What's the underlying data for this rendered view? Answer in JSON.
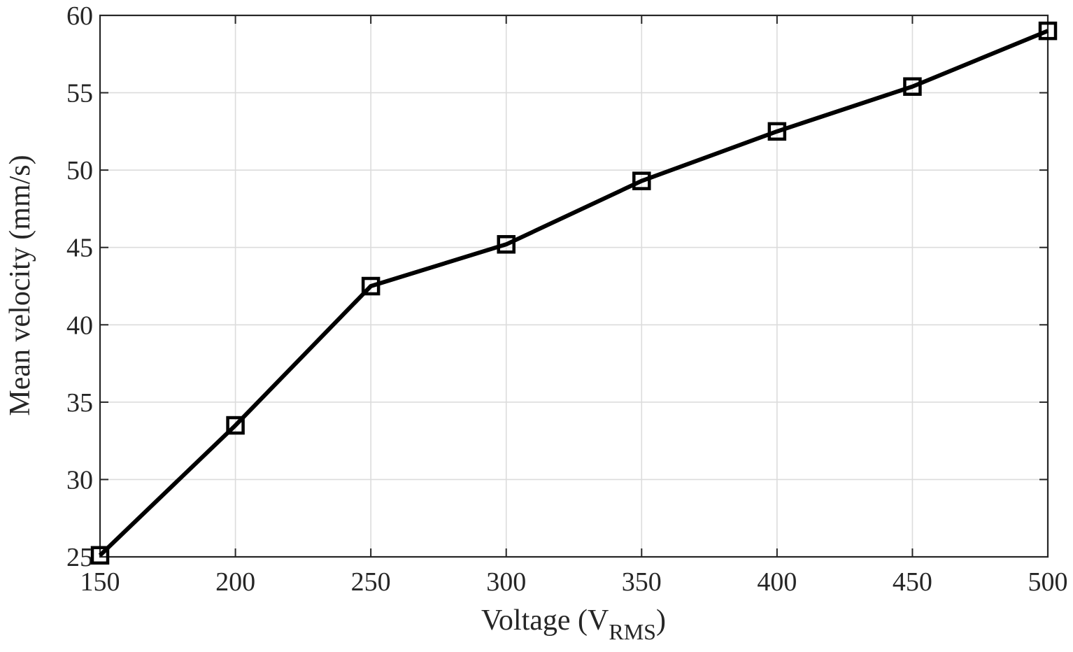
{
  "chart_data": {
    "type": "line",
    "xlabel": "Voltage (V",
    "xlabel_subscript": "RMS",
    "xlabel_close": ")",
    "ylabel": "Mean velocity (mm/s)",
    "xlim": [
      150,
      500
    ],
    "ylim": [
      25,
      60
    ],
    "xticks": [
      150,
      200,
      250,
      300,
      350,
      400,
      450,
      500
    ],
    "yticks": [
      25,
      30,
      35,
      40,
      45,
      50,
      55,
      60
    ],
    "grid": true,
    "marker": "square",
    "line_color": "#000000",
    "x": [
      150,
      200,
      250,
      300,
      350,
      400,
      450,
      500
    ],
    "y": [
      25.1,
      33.5,
      42.5,
      45.2,
      49.3,
      52.5,
      55.4,
      59.0
    ]
  }
}
